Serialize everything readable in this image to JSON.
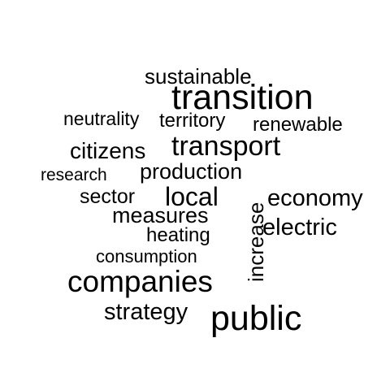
{
  "words": {
    "sustainable": "sustainable",
    "transition": "transition",
    "neutrality": "neutrality",
    "territory": "territory",
    "renewable": "renewable",
    "citizens": "citizens",
    "transport": "transport",
    "research": "research",
    "production": "production",
    "sector": "sector",
    "local": "local",
    "increase": "increase",
    "economy": "economy",
    "measures": "measures",
    "electric": "electric",
    "heating": "heating",
    "consumption": "consumption",
    "companies": "companies",
    "strategy": "strategy",
    "public": "public"
  },
  "colors": {
    "text": "#000000",
    "background": "#ffffff"
  }
}
